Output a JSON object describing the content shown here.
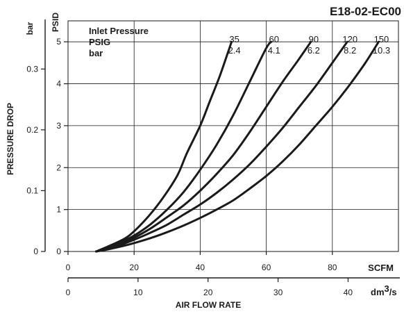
{
  "chart_data": {
    "type": "line",
    "title": "E18-02-EC00",
    "xlabel": "AIR FLOW RATE",
    "ylabel": "PRESSURE DROP",
    "x_unit_primary": "SCFM",
    "x_unit_secondary_base": "dm",
    "x_unit_secondary_exp": "3",
    "x_unit_secondary_tail": "/s",
    "y_unit_primary": "PSID",
    "y_unit_secondary": "bar",
    "xlim": [
      0,
      100
    ],
    "ylim": [
      0,
      5.5
    ],
    "x_ticks": [
      0,
      20,
      40,
      60,
      80
    ],
    "x_tick_labels": [
      "0",
      "20",
      "40",
      "60",
      "80"
    ],
    "x2_ticks": [
      0,
      10,
      20,
      30,
      40
    ],
    "x2_tick_labels": [
      "0",
      "10",
      "20",
      "30",
      "40"
    ],
    "y_ticks": [
      0,
      1,
      2,
      3,
      4,
      5
    ],
    "y_tick_labels": [
      "0",
      "1",
      "2",
      "3",
      "4",
      "5"
    ],
    "y2_ticks": [
      0,
      0.1,
      0.2,
      0.3
    ],
    "y2_tick_labels": [
      "0",
      "0.1",
      "0.2",
      "0.3"
    ],
    "grid": true,
    "legend": {
      "title_lines": [
        "Inlet Pressure",
        "PSIG",
        "bar"
      ]
    },
    "series": [
      {
        "label_psig": "35",
        "label_bar": "2.4",
        "x": [
          8.5,
          10,
          13,
          18,
          23,
          28,
          33,
          36,
          40,
          43,
          46,
          49.5
        ],
        "y": [
          0,
          0.05,
          0.15,
          0.35,
          0.72,
          1.2,
          1.8,
          2.35,
          3.0,
          3.6,
          4.2,
          5.0
        ]
      },
      {
        "label_psig": "60",
        "label_bar": "4.1",
        "x": [
          8.5,
          10,
          15,
          20,
          25,
          30,
          35,
          40,
          45,
          50,
          55,
          60,
          61.5
        ],
        "y": [
          0,
          0.04,
          0.18,
          0.38,
          0.65,
          1.0,
          1.42,
          1.95,
          2.55,
          3.25,
          4.05,
          4.85,
          5.0
        ]
      },
      {
        "label_psig": "90",
        "label_bar": "6.2",
        "x": [
          8.5,
          12,
          16,
          20,
          25,
          30,
          35,
          40,
          45,
          50,
          55,
          60,
          65,
          70,
          73.5
        ],
        "y": [
          0,
          0.08,
          0.2,
          0.33,
          0.55,
          0.82,
          1.1,
          1.45,
          1.85,
          2.3,
          2.85,
          3.45,
          4.05,
          4.6,
          5.0
        ]
      },
      {
        "label_psig": "120",
        "label_bar": "8.2",
        "x": [
          8.5,
          12,
          16,
          20,
          25,
          30,
          35,
          40,
          45,
          50,
          55,
          60,
          65,
          70,
          75,
          80,
          84.5
        ],
        "y": [
          0,
          0.06,
          0.16,
          0.28,
          0.45,
          0.64,
          0.88,
          1.12,
          1.4,
          1.72,
          2.08,
          2.5,
          2.95,
          3.45,
          3.95,
          4.5,
          5.0
        ]
      },
      {
        "label_psig": "150",
        "label_bar": "10.3",
        "x": [
          8.5,
          12,
          16,
          20,
          25,
          30,
          35,
          40,
          45,
          50,
          55,
          60,
          65,
          70,
          75,
          80,
          85,
          90,
          94
        ],
        "y": [
          0,
          0.05,
          0.12,
          0.2,
          0.32,
          0.46,
          0.62,
          0.8,
          1.0,
          1.22,
          1.5,
          1.8,
          2.15,
          2.55,
          3.0,
          3.45,
          3.95,
          4.5,
          5.0
        ]
      }
    ]
  }
}
